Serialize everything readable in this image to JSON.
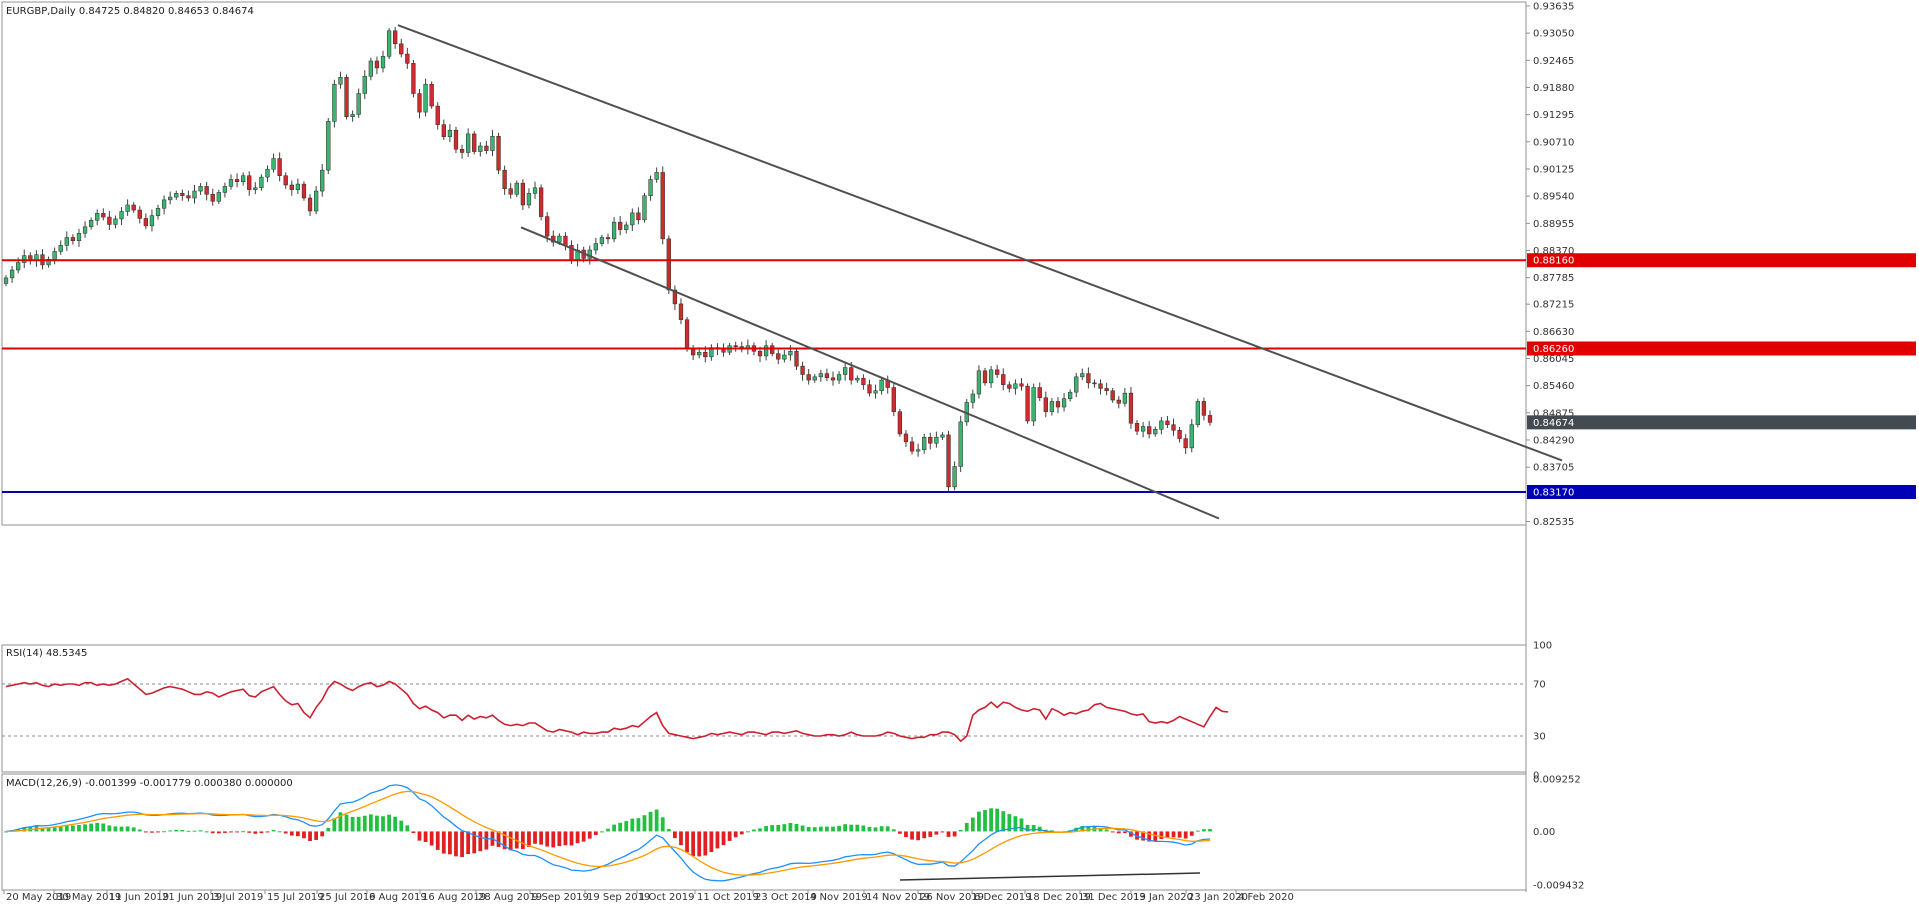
{
  "chart_data": [
    {
      "type": "candlestick",
      "header": "EURGBP,Daily  0.84725 0.84820 0.84653 0.84674",
      "symbol": "EURGBP",
      "timeframe": "Daily",
      "last_price_label": "0.84674",
      "ylim": [
        0.8246,
        0.9372
      ],
      "y_ticks": [
        "0.93635",
        "0.93050",
        "0.92465",
        "0.91880",
        "0.91295",
        "0.90710",
        "0.90125",
        "0.89540",
        "0.88955",
        "0.88370",
        "0.87785",
        "0.87215",
        "0.86630",
        "0.86045",
        "0.85460",
        "0.84875",
        "0.84290",
        "0.83705",
        "0.82535"
      ],
      "x_ticks": [
        "20 May 2019",
        "30 May 2019",
        "11 Jun 2019",
        "21 Jun 2019",
        "3 Jul 2019",
        "15 Jul 2019",
        "25 Jul 2019",
        "6 Aug 2019",
        "16 Aug 2019",
        "28 Aug 2019",
        "9 Sep 2019",
        "19 Sep 2019",
        "1 Oct 2019",
        "11 Oct 2019",
        "23 Oct 2019",
        "4 Nov 2019",
        "14 Nov 2019",
        "26 Nov 2019",
        "6 Dec 2019",
        "18 Dec 2019",
        "31 Dec 2019",
        "13 Jan 2020",
        "23 Jan 2020",
        "4 Feb 2020"
      ],
      "horizontal_levels": [
        {
          "price": 0.8816,
          "label": "0.88160",
          "color": "#e00000"
        },
        {
          "price": 0.8626,
          "label": "0.86260",
          "color": "#e00000"
        },
        {
          "price": 0.8317,
          "label": "0.83170",
          "color": "#0000b4"
        }
      ],
      "trendlines": [
        {
          "from": [
            "8 Aug 2019",
            0.9322
          ],
          "to": [
            "11 Feb 2020",
            0.8385
          ]
        },
        {
          "from": [
            "22 Aug 2019",
            0.8887
          ],
          "to": [
            "17 Dec 2019",
            0.826
          ]
        }
      ],
      "colors": {
        "bull": "#3cb371",
        "bear": "#cd2c2c",
        "trendline": "#505050"
      },
      "closes": [
        0.8778,
        0.8795,
        0.8811,
        0.8826,
        0.8815,
        0.8828,
        0.8806,
        0.8818,
        0.8835,
        0.8848,
        0.8865,
        0.8858,
        0.8874,
        0.8888,
        0.8902,
        0.8917,
        0.8909,
        0.8893,
        0.8905,
        0.8921,
        0.8935,
        0.8924,
        0.8906,
        0.889,
        0.8912,
        0.8928,
        0.8946,
        0.8952,
        0.896,
        0.8955,
        0.895,
        0.8965,
        0.8975,
        0.8958,
        0.8943,
        0.8962,
        0.8975,
        0.899,
        0.8985,
        0.8998,
        0.8968,
        0.8972,
        0.8995,
        0.9012,
        0.9035,
        0.8998,
        0.8978,
        0.8968,
        0.898,
        0.895,
        0.8922,
        0.8965,
        0.901,
        0.9115,
        0.9195,
        0.921,
        0.9125,
        0.913,
        0.9175,
        0.9212,
        0.9245,
        0.923,
        0.9255,
        0.931,
        0.9282,
        0.926,
        0.924,
        0.9175,
        0.9135,
        0.9195,
        0.9148,
        0.9108,
        0.9082,
        0.9096,
        0.9055,
        0.9048,
        0.9088,
        0.905,
        0.9062,
        0.9052,
        0.9083,
        0.901,
        0.897,
        0.8958,
        0.8982,
        0.8935,
        0.896,
        0.8972,
        0.891,
        0.8868,
        0.8855,
        0.8868,
        0.8848,
        0.8815,
        0.8838,
        0.882,
        0.8838,
        0.8852,
        0.8865,
        0.8862,
        0.8898,
        0.8882,
        0.8892,
        0.8918,
        0.8903,
        0.8955,
        0.899,
        0.9005,
        0.8862,
        0.8752,
        0.8722,
        0.8688,
        0.8625,
        0.8612,
        0.8618,
        0.8608,
        0.8628,
        0.8625,
        0.8618,
        0.8632,
        0.863,
        0.8625,
        0.8632,
        0.862,
        0.861,
        0.8632,
        0.8615,
        0.8603,
        0.8612,
        0.862,
        0.8588,
        0.857,
        0.8558,
        0.8565,
        0.8572,
        0.8563,
        0.8558,
        0.857,
        0.8585,
        0.8558,
        0.8562,
        0.8548,
        0.853,
        0.8535,
        0.8558,
        0.8542,
        0.849,
        0.8442,
        0.8425,
        0.8405,
        0.8408,
        0.8435,
        0.8422,
        0.8435,
        0.844,
        0.8328,
        0.8372,
        0.8468,
        0.851,
        0.8528,
        0.8578,
        0.8552,
        0.858,
        0.857,
        0.8548,
        0.854,
        0.855,
        0.8545,
        0.847,
        0.8542,
        0.852,
        0.849,
        0.8512,
        0.85,
        0.8518,
        0.8532,
        0.8565,
        0.8572,
        0.8552,
        0.855,
        0.854,
        0.8535,
        0.8515,
        0.8508,
        0.853,
        0.8465,
        0.8448,
        0.8458,
        0.8442,
        0.8452,
        0.847,
        0.8462,
        0.845,
        0.8432,
        0.8412,
        0.8462,
        0.8512,
        0.8482,
        0.8467
      ],
      "rsi": {
        "label": "RSI(14) 48.5345",
        "levels": [
          70,
          30
        ],
        "ylim": [
          0,
          100
        ],
        "y_ticks": [
          "100",
          "70",
          "30",
          "0"
        ],
        "values": [
          68,
          69,
          70,
          71,
          70,
          71,
          69,
          68,
          70,
          69,
          70,
          70,
          69,
          71,
          71,
          69,
          70,
          69,
          70,
          72,
          74,
          70,
          66,
          62,
          63,
          65,
          67,
          68,
          67,
          66,
          64,
          62,
          62,
          64,
          63,
          60,
          62,
          64,
          65,
          66,
          61,
          60,
          64,
          66,
          68,
          62,
          57,
          54,
          55,
          48,
          44,
          52,
          58,
          67,
          72,
          70,
          67,
          65,
          68,
          70,
          71,
          68,
          69,
          72,
          70,
          66,
          62,
          55,
          51,
          53,
          50,
          48,
          44,
          46,
          46,
          42,
          46,
          43,
          45,
          44,
          46,
          42,
          39,
          38,
          39,
          38,
          40,
          40,
          37,
          34,
          33,
          35,
          34,
          33,
          31,
          33,
          32,
          32,
          33,
          33,
          36,
          35,
          36,
          38,
          37,
          41,
          45,
          48,
          38,
          32,
          31,
          30,
          29,
          28,
          29,
          30,
          32,
          31,
          32,
          33,
          32,
          31,
          33,
          33,
          32,
          31,
          33,
          33,
          32,
          33,
          34,
          32,
          31,
          30,
          30,
          31,
          31,
          30,
          31,
          33,
          31,
          30,
          30,
          30,
          31,
          33,
          32,
          30,
          29,
          28,
          29,
          29,
          31,
          31,
          33,
          33,
          31,
          26,
          30,
          46,
          50,
          52,
          56,
          52,
          56,
          55,
          52,
          50,
          49,
          51,
          50,
          43,
          51,
          49,
          46,
          48,
          47,
          49,
          50,
          54,
          55,
          52,
          51,
          50,
          49,
          47,
          46,
          47,
          41,
          40,
          41,
          40,
          42,
          45,
          43,
          41,
          39,
          37,
          45,
          52,
          49,
          48.5
        ]
      },
      "macd": {
        "label": "MACD(12,26,9) -0.001399 -0.001779 0.000380 0.000000",
        "ylim": [
          -0.0103,
          0.0101
        ],
        "y_ticks": [
          "0.009252",
          "0.00",
          "-0.009432"
        ],
        "macd_color": "#1e90ff",
        "signal_color": "#ff9900"
      }
    }
  ]
}
